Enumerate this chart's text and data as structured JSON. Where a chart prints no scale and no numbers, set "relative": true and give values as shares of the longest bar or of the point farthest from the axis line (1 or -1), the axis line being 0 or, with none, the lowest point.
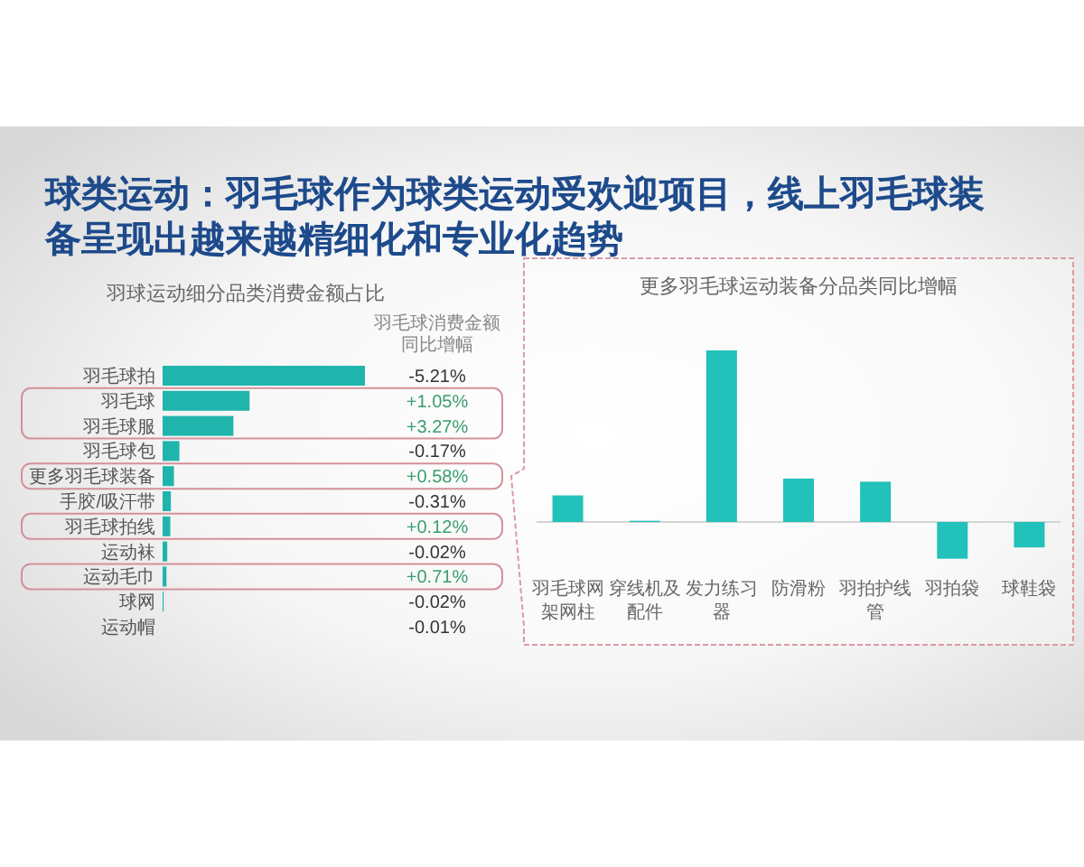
{
  "chart_data": [
    {
      "type": "bar",
      "orientation": "horizontal",
      "relative": true,
      "title": "球类运动：羽毛球作为球类运动受欢迎项目，线上羽毛球装备呈现出越来越精细化和专业化趋势",
      "subtitle": "羽球运动细分品类消费金额占比",
      "categories": [
        "羽毛球拍",
        "羽毛球",
        "羽毛球服",
        "羽毛球包",
        "更多羽毛球装备",
        "手胶/吸汗带",
        "羽毛球拍线",
        "运动袜",
        "运动毛巾",
        "球网",
        "运动帽"
      ],
      "values": [
        1,
        0.43,
        0.35,
        0.083,
        0.056,
        0.041,
        0.038,
        0.023,
        0.019,
        0.005,
        0
      ],
      "color": "#1fb5ad"
    },
    {
      "type": "other",
      "title": "羽毛球消费金额同比增幅",
      "annotations": [
        "-5.21%",
        "+1.05%",
        "+3.27%",
        "-0.17%",
        "+0.58%",
        "-0.31%",
        "+0.12%",
        "-0.02%",
        "+0.71%",
        "-0.02%",
        "-0.01%"
      ]
    },
    {
      "type": "bar",
      "relative": true,
      "title": "更多羽毛球运动装备分品类同比增幅",
      "categories": [
        "羽毛球网架网柱",
        "穿线机及配件",
        "发力练习器",
        "防滑粉",
        "羽拍护线管",
        "羽拍袋",
        "球鞋袋"
      ],
      "values": [
        0.155,
        0.007,
        1,
        0.253,
        0.235,
        -0.214,
        -0.148
      ],
      "color": "#22c1b9"
    }
  ]
}
